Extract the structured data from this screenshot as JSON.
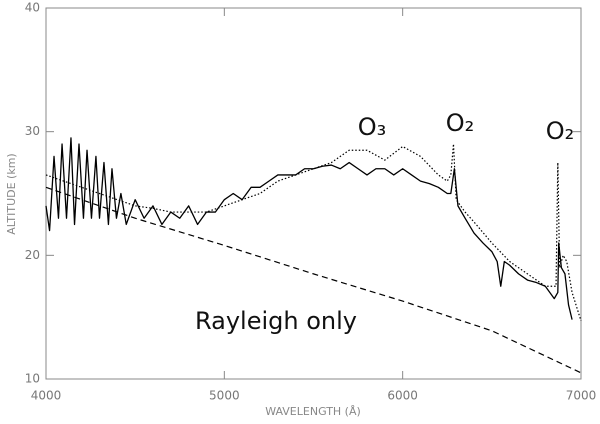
{
  "chart_data": {
    "type": "line",
    "xlabel": "WAVELENGTH (Å)",
    "ylabel": "ALTITUDE (km)",
    "xlim": [
      4000,
      7000
    ],
    "ylim": [
      10,
      40
    ],
    "xticks": [
      4000,
      5000,
      6000,
      7000
    ],
    "yticks": [
      10,
      20,
      30,
      40
    ],
    "annotations": [
      "O₃",
      "O₂",
      "O₂",
      "Rayleigh only"
    ],
    "series": [
      {
        "linestyle": "solid",
        "color": "#000000",
        "x": [
          4000,
          4020,
          4045,
          4070,
          4090,
          4115,
          4140,
          4160,
          4185,
          4210,
          4230,
          4255,
          4280,
          4300,
          4325,
          4350,
          4370,
          4395,
          4420,
          4450,
          4500,
          4550,
          4600,
          4650,
          4700,
          4750,
          4800,
          4850,
          4900,
          4950,
          5000,
          5050,
          5100,
          5150,
          5200,
          5250,
          5300,
          5350,
          5400,
          5450,
          5500,
          5550,
          5600,
          5650,
          5700,
          5750,
          5800,
          5850,
          5900,
          5950,
          6000,
          6050,
          6100,
          6150,
          6200,
          6250,
          6270,
          6290,
          6310,
          6350,
          6400,
          6450,
          6500,
          6530,
          6550,
          6570,
          6600,
          6650,
          6700,
          6750,
          6800,
          6850,
          6870,
          6875,
          6890,
          6910,
          6930,
          6950
        ],
        "values": [
          24,
          22,
          28,
          23,
          29,
          23,
          29.5,
          22.5,
          29,
          23,
          28.5,
          23,
          28,
          23,
          27.5,
          22.5,
          27,
          23,
          25,
          22.5,
          24.5,
          23,
          24,
          22.5,
          23.5,
          23,
          24,
          22.5,
          23.5,
          23.5,
          24.5,
          25,
          24.5,
          25.5,
          25.5,
          26,
          26.5,
          26.5,
          26.5,
          27,
          27,
          27.2,
          27.3,
          27,
          27.5,
          27,
          26.5,
          27,
          27,
          26.5,
          27,
          26.5,
          26,
          25.8,
          25.5,
          25,
          25,
          27,
          24,
          23,
          21.8,
          21,
          20.3,
          19.5,
          17.5,
          19.5,
          19.2,
          18.5,
          18,
          17.8,
          17.5,
          16.5,
          17,
          21,
          19,
          18.5,
          16,
          14.8
        ]
      },
      {
        "linestyle": "dotted",
        "color": "#000000",
        "x": [
          4000,
          4100,
          4200,
          4300,
          4400,
          4500,
          4600,
          4700,
          4800,
          4900,
          5000,
          5100,
          5200,
          5300,
          5400,
          5500,
          5600,
          5700,
          5800,
          5900,
          6000,
          6100,
          6200,
          6250,
          6270,
          6285,
          6300,
          6350,
          6400,
          6500,
          6600,
          6700,
          6800,
          6860,
          6870,
          6880,
          6900,
          6920,
          6950,
          7000
        ],
        "values": [
          26.5,
          26,
          25.5,
          25,
          24.5,
          24,
          23.8,
          23.5,
          23.5,
          23.5,
          24,
          24.5,
          25,
          26,
          26.5,
          27,
          27.5,
          28.5,
          28.5,
          27.7,
          28.8,
          28,
          26.5,
          26,
          26.5,
          29,
          24.5,
          23.5,
          22.7,
          21,
          19.5,
          18.5,
          17.5,
          17.5,
          27.5,
          19,
          20,
          19.5,
          17,
          14.7
        ]
      },
      {
        "linestyle": "dashed",
        "color": "#000000",
        "x": [
          4000,
          4500,
          5000,
          5500,
          6000,
          6500,
          7000
        ],
        "values": [
          25.5,
          23,
          20.8,
          18.5,
          16.3,
          13.9,
          10.5
        ]
      }
    ]
  }
}
